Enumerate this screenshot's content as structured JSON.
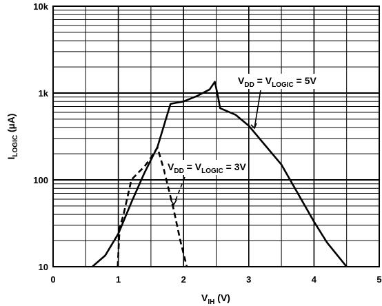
{
  "chart_data": {
    "type": "line",
    "xlabel": {
      "main": "V",
      "sub": "IH",
      "suffix": " (V)"
    },
    "ylabel": {
      "main": "I",
      "sub": "LOGIC",
      "suffix": " (µA)"
    },
    "xlim": [
      0,
      5
    ],
    "ylim": [
      10,
      10000
    ],
    "yscale": "log",
    "grid": true,
    "x_ticks": [
      0,
      1,
      2,
      3,
      4,
      5
    ],
    "x_tick_labels": [
      "0",
      "1",
      "2",
      "3",
      "4",
      "5"
    ],
    "y_ticks": [
      10,
      100,
      1000,
      10000
    ],
    "y_tick_labels": [
      "10",
      "100",
      "1k",
      "10k"
    ],
    "series": [
      {
        "name": "VDD = VLOGIC = 5V",
        "style": "solid",
        "color": "#000000",
        "points": [
          [
            0.6,
            10
          ],
          [
            0.8,
            13.5
          ],
          [
            1.0,
            24
          ],
          [
            1.2,
            55
          ],
          [
            1.4,
            120
          ],
          [
            1.6,
            240
          ],
          [
            1.8,
            750
          ],
          [
            2.0,
            800
          ],
          [
            2.2,
            920
          ],
          [
            2.4,
            1100
          ],
          [
            2.48,
            1350
          ],
          [
            2.53,
            900
          ],
          [
            2.56,
            670
          ],
          [
            2.8,
            560
          ],
          [
            3.0,
            420
          ],
          [
            3.5,
            150
          ],
          [
            4.0,
            33
          ],
          [
            4.2,
            19
          ],
          [
            4.5,
            10
          ]
        ]
      },
      {
        "name": "VDD = VLOGIC = 3V",
        "style": "dashed",
        "color": "#000000",
        "points": [
          [
            0.99,
            10
          ],
          [
            1.02,
            28
          ],
          [
            1.08,
            40
          ],
          [
            1.2,
            100
          ],
          [
            1.3,
            120
          ],
          [
            1.4,
            142
          ],
          [
            1.5,
            180
          ],
          [
            1.6,
            235
          ],
          [
            1.7,
            130
          ],
          [
            1.85,
            45
          ],
          [
            1.95,
            20
          ],
          [
            2.05,
            10
          ]
        ]
      }
    ],
    "annotations": [
      {
        "id": "5v",
        "parts": [
          [
            "V",
            "n"
          ],
          [
            "DD",
            "s"
          ],
          [
            " = V",
            "n"
          ],
          [
            "LOGIC",
            "s"
          ],
          [
            " = 5V",
            "n"
          ]
        ]
      },
      {
        "id": "3v",
        "parts": [
          [
            "V",
            "n"
          ],
          [
            "DD",
            "s"
          ],
          [
            " = V",
            "n"
          ],
          [
            "LOGIC",
            "s"
          ],
          [
            " = 3V",
            "n"
          ]
        ]
      }
    ]
  }
}
